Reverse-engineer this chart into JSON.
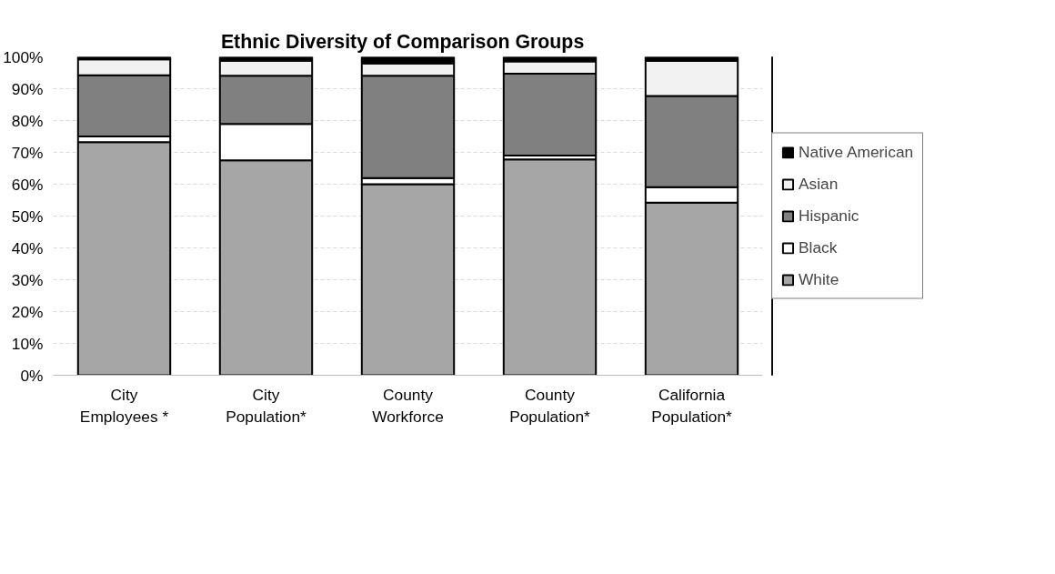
{
  "chart_data": {
    "type": "bar",
    "title": "Ethnic  Diversity of  Comparison Groups",
    "stacked": true,
    "categories": [
      "City Employees *",
      "City Population*",
      "County Workforce",
      "County Population*",
      "California Population*"
    ],
    "series": [
      {
        "name": "White",
        "color": "#a6a6a6",
        "values": [
          73.2,
          67.5,
          60.0,
          67.8,
          54.2
        ]
      },
      {
        "name": "Black",
        "color": "#ffffff",
        "values": [
          1.8,
          11.4,
          1.9,
          1.2,
          4.9
        ]
      },
      {
        "name": "Hispanic",
        "color": "#808080",
        "values": [
          19.2,
          15.2,
          32.2,
          25.7,
          28.6
        ]
      },
      {
        "name": "Asian",
        "color": "#f2f2f2",
        "values": [
          5.0,
          4.7,
          3.8,
          3.9,
          11.0
        ]
      },
      {
        "name": "Native American",
        "color": "#000000",
        "values": [
          0.8,
          1.2,
          2.1,
          1.4,
          1.3
        ]
      }
    ],
    "ylim": [
      0,
      100
    ],
    "yticks": [
      {
        "value": 0,
        "label": "0%"
      },
      {
        "value": 10,
        "label": "10%"
      },
      {
        "value": 20,
        "label": "20%"
      },
      {
        "value": 30,
        "label": "30%"
      },
      {
        "value": 40,
        "label": "40%"
      },
      {
        "value": 50,
        "label": "50%"
      },
      {
        "value": 60,
        "label": "60%"
      },
      {
        "value": 70,
        "label": "70%"
      },
      {
        "value": 80,
        "label": "80%"
      },
      {
        "value": 90,
        "label": "90%"
      },
      {
        "value": 100,
        "label": "100%"
      }
    ],
    "grid": "y",
    "legend": "right"
  }
}
